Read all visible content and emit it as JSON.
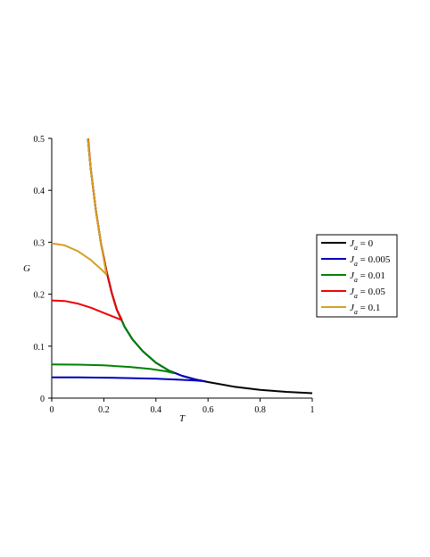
{
  "chart_data": {
    "type": "line",
    "xlabel": "T",
    "ylabel": "G",
    "xlim": [
      0,
      1
    ],
    "ylim": [
      0,
      0.5
    ],
    "x_ticks": [
      "0",
      "0.2",
      "0.4",
      "0.6",
      "0.8",
      "1"
    ],
    "y_ticks": [
      "0",
      "0.1",
      "0.2",
      "0.3",
      "0.4",
      "0.5"
    ],
    "grid": false,
    "legend_position": "right",
    "series": [
      {
        "name": "J_a = 0",
        "legend_var": "J",
        "legend_sub": "a",
        "legend_rest": " = 0",
        "color": "#000000",
        "points": [
          [
            0.135,
            0.52
          ],
          [
            0.15,
            0.44
          ],
          [
            0.17,
            0.36
          ],
          [
            0.19,
            0.295
          ],
          [
            0.21,
            0.245
          ],
          [
            0.23,
            0.203
          ],
          [
            0.25,
            0.17
          ],
          [
            0.28,
            0.137
          ],
          [
            0.31,
            0.113
          ],
          [
            0.35,
            0.09
          ],
          [
            0.4,
            0.068
          ],
          [
            0.45,
            0.053
          ],
          [
            0.5,
            0.043
          ],
          [
            0.55,
            0.036
          ],
          [
            0.6,
            0.031
          ],
          [
            0.7,
            0.022
          ],
          [
            0.8,
            0.016
          ],
          [
            0.9,
            0.012
          ],
          [
            1.0,
            0.0095
          ]
        ]
      },
      {
        "name": "J_a = 0.005",
        "legend_var": "J",
        "legend_sub": "a",
        "legend_rest": " = 0.005",
        "color": "#0000bb",
        "points": [
          [
            0.0,
            0.04
          ],
          [
            0.1,
            0.0398
          ],
          [
            0.2,
            0.0393
          ],
          [
            0.3,
            0.0385
          ],
          [
            0.4,
            0.0372
          ],
          [
            0.5,
            0.0352
          ],
          [
            0.55,
            0.0338
          ],
          [
            0.59,
            0.0325
          ]
        ]
      },
      {
        "name": "J_a = 0.01",
        "legend_var": "J",
        "legend_sub": "a",
        "legend_rest": " = 0.01",
        "color": "#008000",
        "points": [
          [
            0.0,
            0.065
          ],
          [
            0.1,
            0.0645
          ],
          [
            0.2,
            0.063
          ],
          [
            0.3,
            0.06
          ],
          [
            0.38,
            0.056
          ],
          [
            0.44,
            0.0515
          ],
          [
            0.47,
            0.048
          ]
        ]
      },
      {
        "name": "J_a = 0.05",
        "legend_var": "J",
        "legend_sub": "a",
        "legend_rest": " = 0.05",
        "color": "#ee0000",
        "points": [
          [
            0.0,
            0.188
          ],
          [
            0.05,
            0.187
          ],
          [
            0.1,
            0.182
          ],
          [
            0.15,
            0.174
          ],
          [
            0.2,
            0.164
          ],
          [
            0.24,
            0.156
          ],
          [
            0.27,
            0.15
          ]
        ]
      },
      {
        "name": "J_a = 0.1",
        "legend_var": "J",
        "legend_sub": "a",
        "legend_rest": " = 0.1",
        "color": "#d4a020",
        "points": [
          [
            0.0,
            0.298
          ],
          [
            0.05,
            0.294
          ],
          [
            0.1,
            0.283
          ],
          [
            0.15,
            0.266
          ],
          [
            0.19,
            0.248
          ],
          [
            0.21,
            0.238
          ]
        ]
      },
      {
        "name": "branch",
        "legend": false,
        "color": "#000000",
        "points": [
          [
            0.135,
            0.52
          ],
          [
            0.15,
            0.44
          ],
          [
            0.17,
            0.36
          ],
          [
            0.19,
            0.295
          ],
          [
            0.21,
            0.245
          ],
          [
            0.23,
            0.203
          ],
          [
            0.25,
            0.17
          ],
          [
            0.28,
            0.137
          ],
          [
            0.31,
            0.113
          ],
          [
            0.35,
            0.09
          ],
          [
            0.4,
            0.068
          ],
          [
            0.45,
            0.053
          ],
          [
            0.5,
            0.043
          ],
          [
            0.55,
            0.036
          ],
          [
            0.59,
            0.032
          ]
        ],
        "color_override": "#0000bb"
      }
    ],
    "overlays": [
      {
        "color": "#008000",
        "points": [
          [
            0.19,
            0.295
          ],
          [
            0.21,
            0.245
          ],
          [
            0.23,
            0.203
          ],
          [
            0.25,
            0.17
          ],
          [
            0.28,
            0.137
          ],
          [
            0.31,
            0.113
          ],
          [
            0.35,
            0.09
          ],
          [
            0.4,
            0.068
          ],
          [
            0.45,
            0.053
          ],
          [
            0.47,
            0.048
          ]
        ]
      },
      {
        "color": "#ee0000",
        "points": [
          [
            0.14,
            0.5
          ],
          [
            0.15,
            0.44
          ],
          [
            0.17,
            0.36
          ],
          [
            0.19,
            0.295
          ],
          [
            0.21,
            0.245
          ],
          [
            0.23,
            0.203
          ],
          [
            0.25,
            0.17
          ],
          [
            0.27,
            0.15
          ]
        ]
      },
      {
        "color": "#d4a020",
        "points": [
          [
            0.135,
            0.52
          ],
          [
            0.15,
            0.44
          ],
          [
            0.17,
            0.36
          ],
          [
            0.19,
            0.295
          ],
          [
            0.21,
            0.238
          ]
        ]
      }
    ]
  }
}
